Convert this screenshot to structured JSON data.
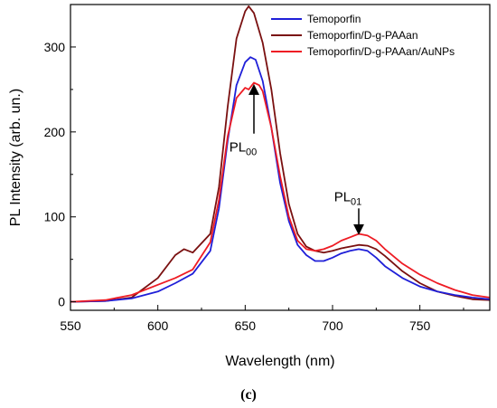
{
  "chart_data": {
    "type": "line",
    "xlabel": "Wavelength (nm)",
    "ylabel": "PL Intensity (arb. un.)",
    "xlim": [
      550,
      790
    ],
    "ylim": [
      -10,
      350
    ],
    "xticks": [
      550,
      600,
      650,
      700,
      750
    ],
    "yticks": [
      0,
      100,
      200,
      300
    ],
    "grid": false,
    "legend_position": "top-right",
    "caption": "(c)",
    "series": [
      {
        "name": "Temoporfin",
        "color": "#1f1fd8",
        "x": [
          550,
          570,
          585,
          600,
          610,
          620,
          630,
          635,
          640,
          645,
          650,
          653,
          656,
          660,
          665,
          670,
          675,
          680,
          685,
          690,
          695,
          700,
          705,
          710,
          715,
          720,
          725,
          730,
          740,
          750,
          760,
          770,
          780,
          790
        ],
        "y": [
          0,
          1,
          4,
          12,
          22,
          33,
          60,
          110,
          190,
          255,
          282,
          288,
          285,
          260,
          205,
          140,
          95,
          67,
          55,
          48,
          48,
          52,
          57,
          60,
          62,
          60,
          52,
          42,
          28,
          18,
          12,
          8,
          5,
          3
        ]
      },
      {
        "name": "Temoporfin/D-g-PAAan",
        "color": "#7a1010",
        "x": [
          550,
          570,
          585,
          600,
          610,
          615,
          620,
          630,
          635,
          640,
          645,
          650,
          652,
          655,
          660,
          665,
          670,
          675,
          680,
          685,
          690,
          695,
          700,
          705,
          710,
          715,
          720,
          725,
          730,
          740,
          750,
          760,
          770,
          780,
          790
        ],
        "y": [
          0,
          1,
          5,
          28,
          55,
          62,
          58,
          80,
          135,
          230,
          310,
          342,
          348,
          340,
          305,
          250,
          175,
          115,
          80,
          65,
          60,
          58,
          60,
          63,
          65,
          67,
          66,
          62,
          54,
          36,
          22,
          12,
          7,
          3,
          2
        ]
      },
      {
        "name": "Temoporfin/D-g-PAAan/AuNPs",
        "color": "#ee1c24",
        "x": [
          550,
          570,
          585,
          600,
          610,
          620,
          630,
          635,
          640,
          645,
          650,
          652,
          655,
          658,
          660,
          665,
          670,
          675,
          680,
          685,
          690,
          695,
          700,
          705,
          710,
          715,
          720,
          725,
          730,
          740,
          750,
          760,
          770,
          780,
          790
        ],
        "y": [
          0,
          2,
          8,
          20,
          28,
          38,
          70,
          120,
          195,
          240,
          252,
          250,
          258,
          255,
          248,
          205,
          148,
          100,
          72,
          62,
          60,
          62,
          66,
          72,
          76,
          80,
          78,
          72,
          62,
          45,
          32,
          22,
          14,
          8,
          5
        ]
      }
    ],
    "annotations": [
      {
        "label": "PL",
        "subscript": "00",
        "arrow_x": 655,
        "arrow_y_from": 198,
        "arrow_y_to": 250
      },
      {
        "label": "PL",
        "subscript": "01",
        "arrow_x": 715,
        "arrow_y_from": 110,
        "arrow_y_to": 85
      }
    ]
  }
}
